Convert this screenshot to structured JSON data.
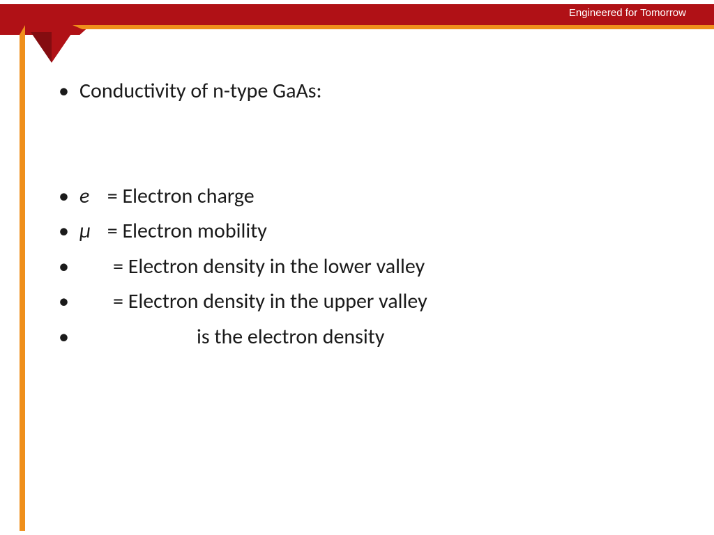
{
  "banner": {
    "tagline": "Engineered for Tomorrow",
    "banner_bg": "#b01116",
    "accent_bg": "#ef8f1b",
    "text_color": "#ffffff"
  },
  "slide": {
    "bullets": [
      {
        "symbol": "",
        "text": "Conductivity of n-type GaAs:"
      },
      {
        "gap": true
      },
      {
        "symbol": "e",
        "text": " = Electron charge"
      },
      {
        "symbol": "µ",
        "text": " = Electron mobility"
      },
      {
        "pad": "pad1",
        "text": "= Electron density in the lower valley"
      },
      {
        "pad": "pad1",
        "text": "= Electron density in the upper valley"
      },
      {
        "pad": "pad2",
        "text": "is the electron density"
      }
    ],
    "text_color": "#1a1a1a",
    "font_size_pt": 22
  }
}
